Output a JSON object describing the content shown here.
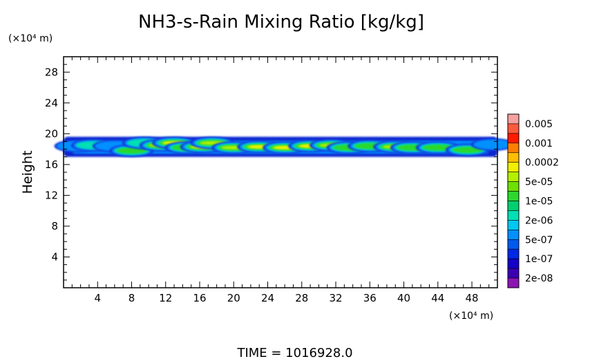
{
  "chart_data": {
    "type": "heatmap",
    "title": "NH3-s-Rain Mixing Ratio [kg/kg]",
    "ylabel": "Height",
    "y_unit_label": "(×10⁴ m)",
    "x_unit_label": "(×10⁴ m)",
    "xlim": [
      0,
      51
    ],
    "ylim": [
      0,
      30
    ],
    "x_ticks": [
      4,
      8,
      12,
      16,
      20,
      24,
      28,
      32,
      36,
      40,
      44,
      48
    ],
    "x_tick_labels": [
      "4",
      "8",
      "12",
      "16",
      "20",
      "24",
      "28",
      "32",
      "36",
      "40",
      "44",
      "48"
    ],
    "y_ticks": [
      4,
      8,
      12,
      16,
      20,
      24,
      28
    ],
    "y_tick_labels": [
      "4",
      "8",
      "12",
      "16",
      "20",
      "24",
      "28"
    ],
    "footer": "TIME  =  1016928.0",
    "colorbar": {
      "labels": [
        "0.005",
        "0.001",
        "0.0002",
        "5e-05",
        "1e-05",
        "2e-06",
        "5e-07",
        "1e-07",
        "2e-08"
      ],
      "colors_top_to_bottom": [
        "#f7a0a0",
        "#ff5a3c",
        "#ff1a00",
        "#ff7f00",
        "#ffbf00",
        "#f0f000",
        "#b4f000",
        "#6ee000",
        "#2cd82c",
        "#00d070",
        "#00e0b4",
        "#00c8f0",
        "#0090ff",
        "#005af0",
        "#0028e6",
        "#1400c8",
        "#3c00b4",
        "#8c14b4"
      ]
    },
    "cloud_band": {
      "x_range": [
        0,
        51
      ],
      "y_range": [
        17,
        19.6
      ],
      "cells": [
        {
          "x": 1.5,
          "y": 18.4,
          "level": 0
        },
        {
          "x": 3.5,
          "y": 18.5,
          "level": 1
        },
        {
          "x": 6,
          "y": 18.4,
          "level": 0
        },
        {
          "x": 8,
          "y": 17.8,
          "level": 2
        },
        {
          "x": 9.5,
          "y": 18.8,
          "level": 1
        },
        {
          "x": 11.5,
          "y": 18.5,
          "level": 3
        },
        {
          "x": 13,
          "y": 18.8,
          "level": 4
        },
        {
          "x": 14.5,
          "y": 18.2,
          "level": 2
        },
        {
          "x": 16.3,
          "y": 18.3,
          "level": 5
        },
        {
          "x": 17.5,
          "y": 18.8,
          "level": 3
        },
        {
          "x": 20,
          "y": 18.2,
          "level": 3
        },
        {
          "x": 23,
          "y": 18.3,
          "level": 4
        },
        {
          "x": 26,
          "y": 18.2,
          "level": 4
        },
        {
          "x": 29,
          "y": 18.4,
          "level": 4
        },
        {
          "x": 31.5,
          "y": 18.5,
          "level": 3
        },
        {
          "x": 33.5,
          "y": 18.2,
          "level": 2
        },
        {
          "x": 36,
          "y": 18.4,
          "level": 2
        },
        {
          "x": 39,
          "y": 18.3,
          "level": 3
        },
        {
          "x": 41,
          "y": 18.2,
          "level": 2
        },
        {
          "x": 44,
          "y": 18.2,
          "level": 2
        },
        {
          "x": 47.5,
          "y": 17.9,
          "level": 2
        },
        {
          "x": 50.5,
          "y": 18.6,
          "level": 0
        }
      ]
    }
  }
}
